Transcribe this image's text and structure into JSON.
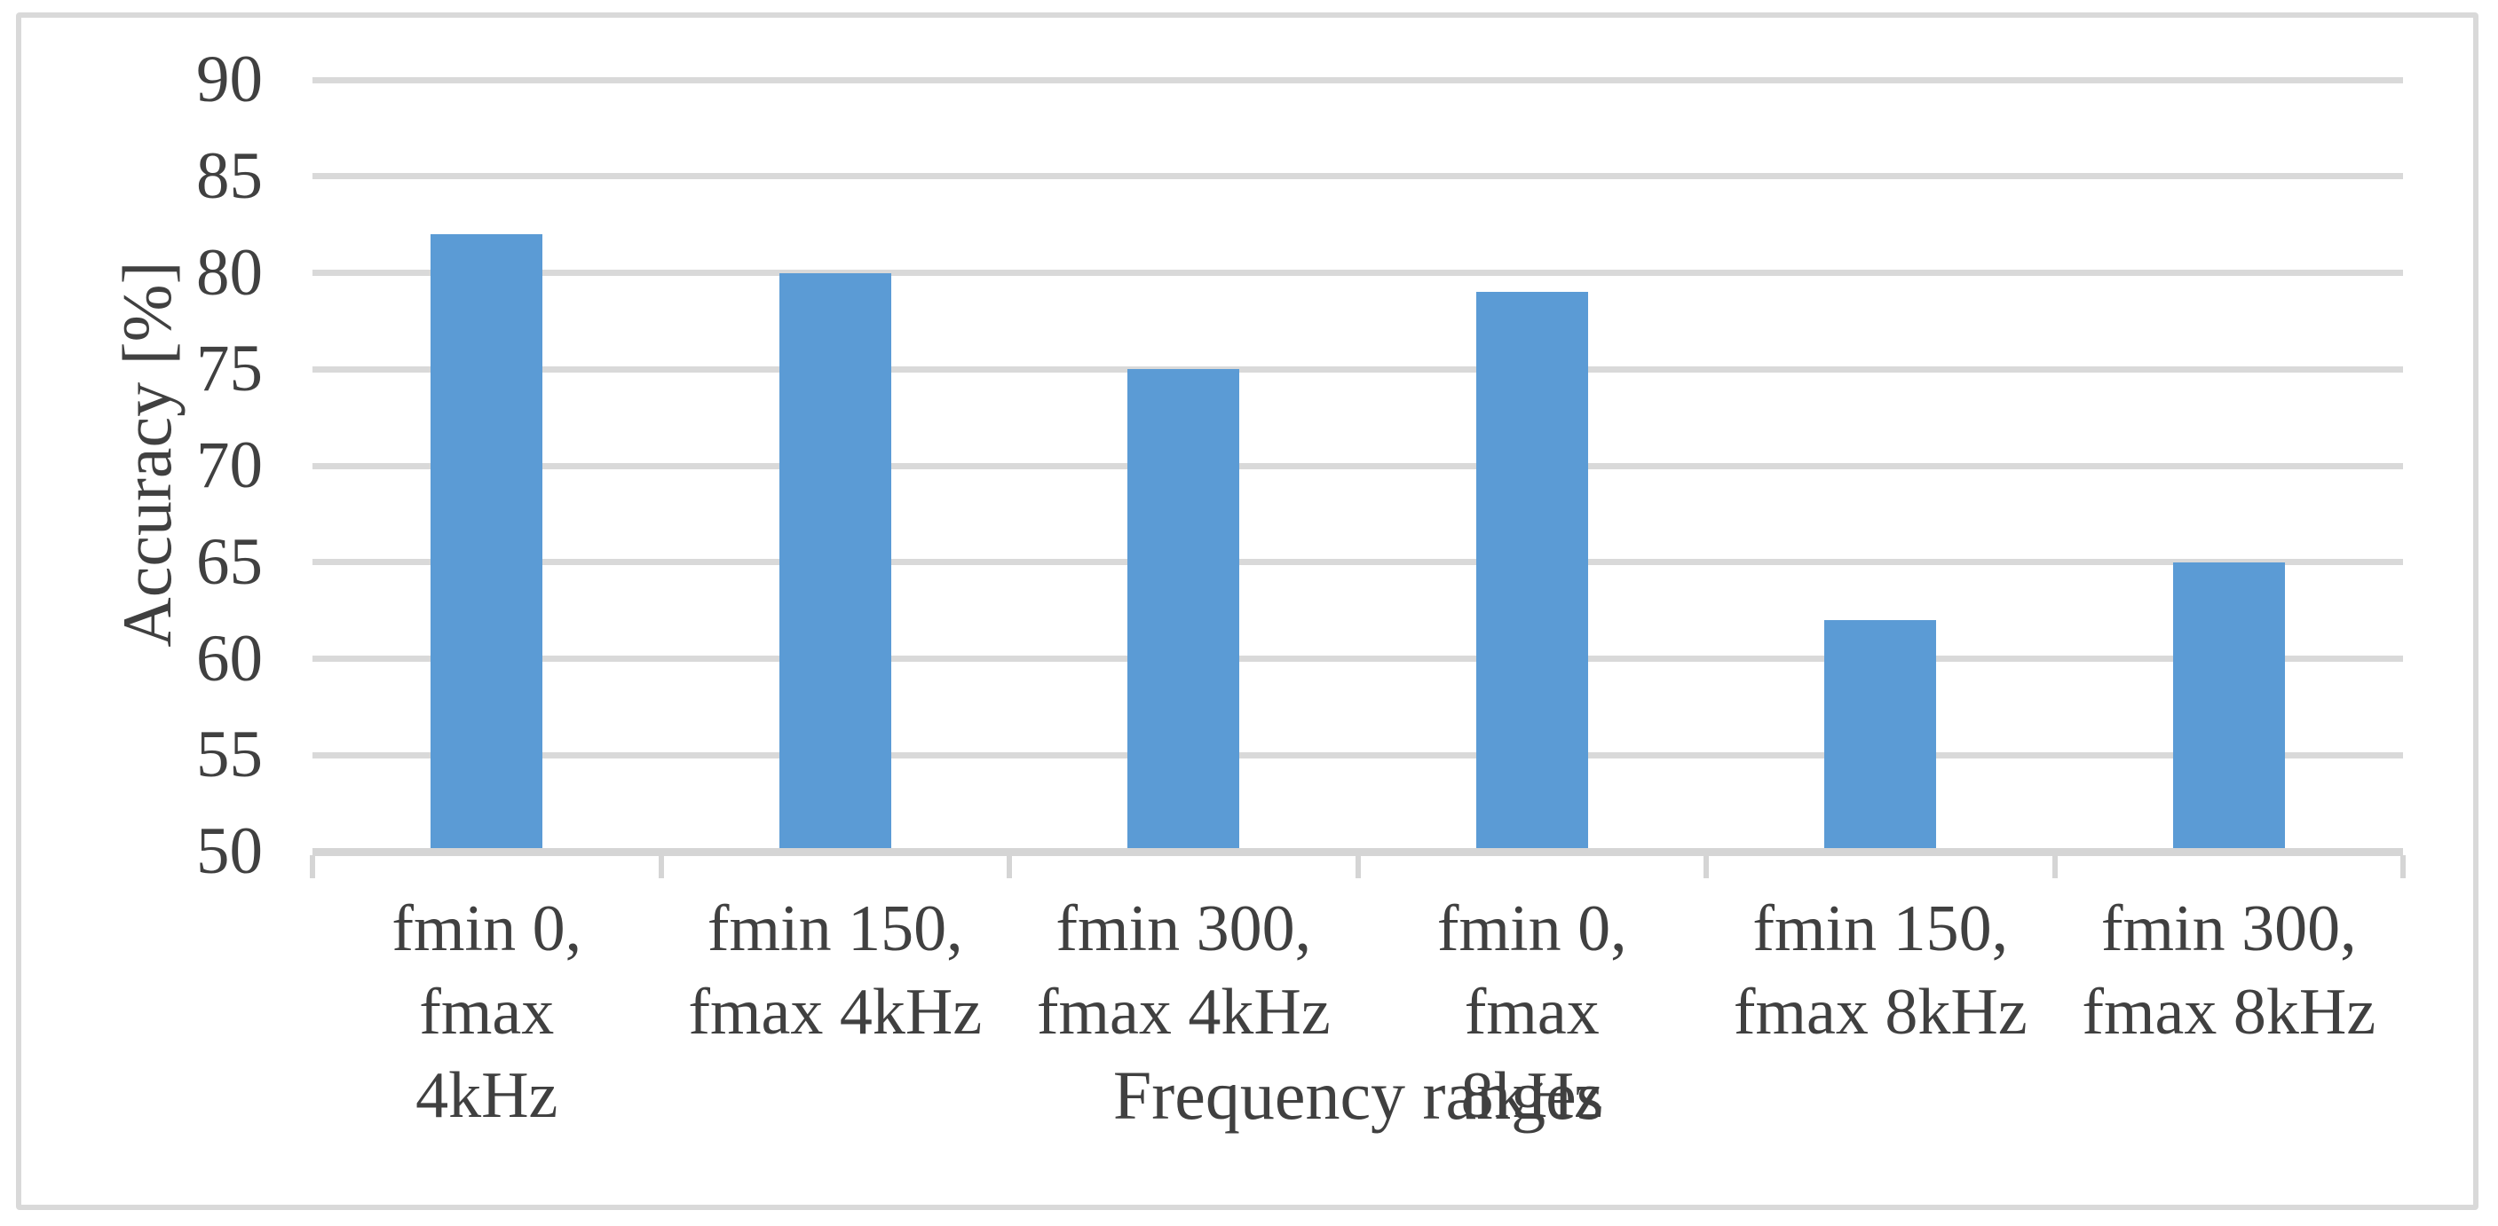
{
  "chart_data": {
    "type": "bar",
    "title": "",
    "xlabel": "Frequency ranges",
    "ylabel": "Accuracy [%]",
    "categories": [
      "fmin 0, fmax 4kHz",
      "fmin 150, fmax 4kHz",
      "fmin 300, fmax 4kHz",
      "fmin 0, fmax 8kHz",
      "fmin 150, fmax 8kHz",
      "fmin 300, fmax 8kHz"
    ],
    "category_label_lines": [
      [
        "fmin 0, fmax",
        "4kHz"
      ],
      [
        "fmin 150,",
        "fmax 4kHz"
      ],
      [
        "fmin 300,",
        "fmax 4kHz"
      ],
      [
        "fmin 0, fmax",
        "8kHz"
      ],
      [
        "fmin 150,",
        "fmax 8kHz"
      ],
      [
        "fmin 300,",
        "fmax 8kHz"
      ]
    ],
    "values": [
      82,
      80,
      75,
      79,
      62,
      65
    ],
    "ylim": [
      50,
      90
    ],
    "yticks": [
      50,
      55,
      60,
      65,
      70,
      75,
      80,
      85,
      90
    ],
    "grid": "horizontal",
    "legend": "none",
    "colors": {
      "bar": "#5b9bd5",
      "gridline": "#d9d9d9",
      "axis_line": "#d5d5d5",
      "text": "#404040",
      "figure_border": "#d9d9d9",
      "background": "#ffffff"
    }
  }
}
